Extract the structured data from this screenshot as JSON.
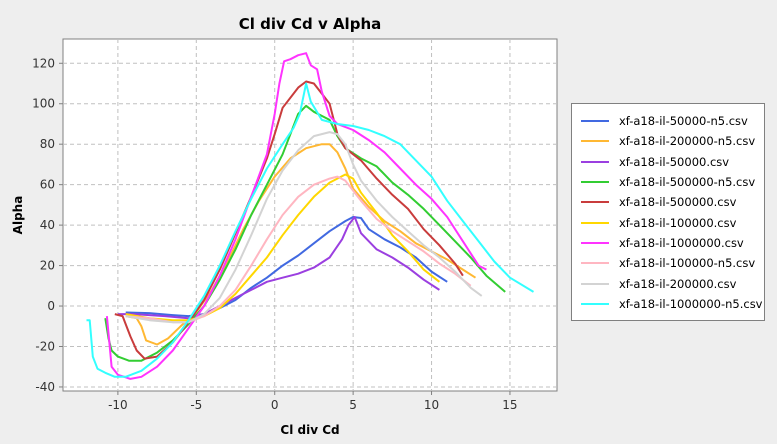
{
  "chart_data": {
    "type": "line",
    "title": "Cl div Cd v Alpha",
    "xlabel": "Cl div Cd",
    "ylabel": "Alpha",
    "xlim": [
      -13.5,
      18
    ],
    "ylim": [
      -42,
      132
    ],
    "x_ticks": [
      -10,
      -5,
      0,
      5,
      10,
      15
    ],
    "y_ticks": [
      -40,
      -20,
      0,
      20,
      40,
      60,
      80,
      100,
      120
    ],
    "grid": true,
    "legend_position": "right",
    "series": [
      {
        "name": "xf-a18-il-50000-n5.csv",
        "color": "#4169e1",
        "points": [
          [
            -9.5,
            -3.2
          ],
          [
            -8,
            -3.5
          ],
          [
            -6.5,
            -4.5
          ],
          [
            -5.5,
            -5
          ],
          [
            -4.5,
            -4
          ],
          [
            -3.5,
            -1
          ],
          [
            -2.5,
            3
          ],
          [
            -1.5,
            9
          ],
          [
            -0.5,
            14
          ],
          [
            0.5,
            20
          ],
          [
            1.5,
            25
          ],
          [
            2.5,
            31
          ],
          [
            3.5,
            37
          ],
          [
            4.5,
            42
          ],
          [
            5,
            44
          ],
          [
            5.5,
            43.5
          ],
          [
            6,
            38
          ],
          [
            7,
            33
          ],
          [
            8,
            29
          ],
          [
            9,
            24
          ],
          [
            10,
            17
          ],
          [
            11,
            12
          ]
        ]
      },
      {
        "name": "xf-a18-il-200000-n5.csv",
        "color": "#ffb833",
        "points": [
          [
            -9.5,
            -5
          ],
          [
            -8.8,
            -6
          ],
          [
            -8.5,
            -10
          ],
          [
            -8.2,
            -17
          ],
          [
            -7.5,
            -19
          ],
          [
            -6.8,
            -16
          ],
          [
            -6,
            -10
          ],
          [
            -5,
            -3
          ],
          [
            -4,
            8
          ],
          [
            -3,
            22
          ],
          [
            -2,
            38
          ],
          [
            -1,
            52
          ],
          [
            0,
            64
          ],
          [
            1,
            73
          ],
          [
            2,
            78
          ],
          [
            3,
            80
          ],
          [
            3.5,
            80
          ],
          [
            4,
            76
          ],
          [
            4.5,
            68
          ],
          [
            5,
            58
          ],
          [
            6,
            49
          ],
          [
            7,
            42
          ],
          [
            8,
            37
          ],
          [
            9,
            31
          ],
          [
            10,
            27
          ],
          [
            11,
            23
          ],
          [
            12,
            18
          ],
          [
            12.8,
            14
          ]
        ]
      },
      {
        "name": "xf-a18-il-50000.csv",
        "color": "#9b3fe0",
        "points": [
          [
            -10,
            -4
          ],
          [
            -9,
            -4
          ],
          [
            -7,
            -5
          ],
          [
            -5.5,
            -6
          ],
          [
            -4.5,
            -4
          ],
          [
            -3.5,
            0
          ],
          [
            -2.5,
            4
          ],
          [
            -1.5,
            8
          ],
          [
            -0.5,
            12
          ],
          [
            0.5,
            14
          ],
          [
            1.5,
            16
          ],
          [
            2.5,
            19
          ],
          [
            3.5,
            24
          ],
          [
            4.3,
            33
          ],
          [
            4.7,
            40
          ],
          [
            5.1,
            44
          ],
          [
            5.5,
            36
          ],
          [
            6.5,
            28
          ],
          [
            7.5,
            24
          ],
          [
            8.5,
            19
          ],
          [
            9.5,
            13
          ],
          [
            10.5,
            8
          ]
        ]
      },
      {
        "name": "xf-a18-il-500000-n5.csv",
        "color": "#32cd32",
        "points": [
          [
            -10.8,
            -6
          ],
          [
            -10.6,
            -16
          ],
          [
            -10.4,
            -22
          ],
          [
            -10,
            -25
          ],
          [
            -9.3,
            -27
          ],
          [
            -8.5,
            -27
          ],
          [
            -7.5,
            -23
          ],
          [
            -6.5,
            -17
          ],
          [
            -5.5,
            -9
          ],
          [
            -4.5,
            0
          ],
          [
            -3.5,
            13
          ],
          [
            -2.5,
            28
          ],
          [
            -1.5,
            45
          ],
          [
            -0.5,
            60
          ],
          [
            0.5,
            75
          ],
          [
            1.5,
            95
          ],
          [
            2,
            99
          ],
          [
            2.5,
            96
          ],
          [
            3,
            94
          ],
          [
            3.5,
            92
          ],
          [
            4,
            84
          ],
          [
            4.5,
            78
          ],
          [
            5.5,
            73
          ],
          [
            6.5,
            69
          ],
          [
            7.5,
            61
          ],
          [
            8.5,
            55
          ],
          [
            9.5,
            48
          ],
          [
            10.5,
            40
          ],
          [
            11.5,
            32
          ],
          [
            12.5,
            24
          ],
          [
            13.5,
            15
          ],
          [
            14.7,
            7
          ]
        ]
      },
      {
        "name": "xf-a18-il-500000.csv",
        "color": "#c93c3c",
        "points": [
          [
            -10.2,
            -4
          ],
          [
            -9.7,
            -5
          ],
          [
            -9.2,
            -15
          ],
          [
            -8.8,
            -22
          ],
          [
            -8.3,
            -26
          ],
          [
            -7.5,
            -25
          ],
          [
            -6.5,
            -18
          ],
          [
            -5.5,
            -8
          ],
          [
            -4.5,
            3
          ],
          [
            -3.5,
            18
          ],
          [
            -2.5,
            36
          ],
          [
            -1.5,
            54
          ],
          [
            -0.5,
            73
          ],
          [
            0,
            85
          ],
          [
            0.5,
            98
          ],
          [
            1.5,
            108
          ],
          [
            2,
            111
          ],
          [
            2.5,
            110
          ],
          [
            3,
            105
          ],
          [
            3.5,
            100
          ],
          [
            4,
            85
          ],
          [
            4.5,
            78
          ],
          [
            5.5,
            72
          ],
          [
            6.5,
            63
          ],
          [
            7.5,
            55
          ],
          [
            8.5,
            48
          ],
          [
            9.5,
            38
          ],
          [
            10.5,
            30
          ],
          [
            11.5,
            21
          ],
          [
            12,
            15
          ]
        ]
      },
      {
        "name": "xf-a18-il-100000.csv",
        "color": "#ffd700",
        "points": [
          [
            -9.5,
            -4
          ],
          [
            -8,
            -6
          ],
          [
            -6.5,
            -7
          ],
          [
            -5.5,
            -7
          ],
          [
            -4.5,
            -5
          ],
          [
            -3.5,
            -1
          ],
          [
            -2.5,
            6
          ],
          [
            -1.5,
            15
          ],
          [
            -0.5,
            24
          ],
          [
            0.5,
            35
          ],
          [
            1.5,
            45
          ],
          [
            2.5,
            54
          ],
          [
            3.5,
            61
          ],
          [
            4.5,
            65
          ],
          [
            5,
            63
          ],
          [
            5.5,
            56
          ],
          [
            6.5,
            46
          ],
          [
            7.5,
            35
          ],
          [
            8.5,
            27
          ],
          [
            9.5,
            18
          ],
          [
            10.5,
            12
          ]
        ]
      },
      {
        "name": "xf-a18-il-1000000.csv",
        "color": "#ff33ff",
        "points": [
          [
            -10.7,
            -5
          ],
          [
            -10.4,
            -30
          ],
          [
            -10,
            -34
          ],
          [
            -9.2,
            -36
          ],
          [
            -8.5,
            -35
          ],
          [
            -7.5,
            -30
          ],
          [
            -6.5,
            -22
          ],
          [
            -5.5,
            -11
          ],
          [
            -4.5,
            0
          ],
          [
            -3.5,
            15
          ],
          [
            -2.5,
            33
          ],
          [
            -1.5,
            54
          ],
          [
            -0.5,
            75
          ],
          [
            0,
            95
          ],
          [
            0.3,
            110
          ],
          [
            0.6,
            121
          ],
          [
            1,
            122
          ],
          [
            1.5,
            124
          ],
          [
            2,
            125
          ],
          [
            2.3,
            119
          ],
          [
            2.7,
            117
          ],
          [
            3,
            106
          ],
          [
            3.5,
            94
          ],
          [
            4,
            90
          ],
          [
            5,
            87
          ],
          [
            6,
            82
          ],
          [
            7,
            76
          ],
          [
            8,
            68
          ],
          [
            9,
            60
          ],
          [
            10,
            53
          ],
          [
            11,
            44
          ],
          [
            12,
            32
          ],
          [
            13,
            20
          ],
          [
            13.5,
            18
          ]
        ]
      },
      {
        "name": "xf-a18-il-100000-n5.csv",
        "color": "#ffb6c1",
        "points": [
          [
            -9.5,
            -5
          ],
          [
            -8,
            -6
          ],
          [
            -6.5,
            -8
          ],
          [
            -5.5,
            -8
          ],
          [
            -4.5,
            -5
          ],
          [
            -3.5,
            0
          ],
          [
            -2.5,
            8
          ],
          [
            -1.5,
            20
          ],
          [
            -0.5,
            33
          ],
          [
            0.5,
            45
          ],
          [
            1.5,
            54
          ],
          [
            2.5,
            60
          ],
          [
            3.5,
            63
          ],
          [
            4,
            64
          ],
          [
            4.5,
            62
          ],
          [
            5,
            57
          ],
          [
            5.5,
            52
          ],
          [
            6.5,
            43
          ],
          [
            7.5,
            37
          ],
          [
            8.5,
            32
          ],
          [
            9.5,
            27
          ],
          [
            10.5,
            21
          ],
          [
            11.5,
            16
          ],
          [
            12.5,
            10
          ]
        ]
      },
      {
        "name": "xf-a18-il-200000.csv",
        "color": "#d3d3d3",
        "points": [
          [
            -9.5,
            -5
          ],
          [
            -8,
            -7
          ],
          [
            -6.5,
            -8
          ],
          [
            -5.5,
            -8
          ],
          [
            -4.5,
            -4
          ],
          [
            -3.5,
            4
          ],
          [
            -2.5,
            18
          ],
          [
            -1.5,
            35
          ],
          [
            -0.5,
            53
          ],
          [
            0.5,
            67
          ],
          [
            1.5,
            77
          ],
          [
            2.5,
            84
          ],
          [
            3.5,
            86
          ],
          [
            4,
            85
          ],
          [
            4.5,
            80
          ],
          [
            5,
            70
          ],
          [
            5.5,
            62
          ],
          [
            6.5,
            52
          ],
          [
            7.5,
            44
          ],
          [
            8.5,
            37
          ],
          [
            9.5,
            30
          ],
          [
            10.5,
            24
          ],
          [
            11.5,
            17
          ],
          [
            12.5,
            9
          ],
          [
            13.2,
            5
          ]
        ]
      },
      {
        "name": "xf-a18-il-1000000-n5.csv",
        "color": "#33ffff",
        "points": [
          [
            -12,
            -7
          ],
          [
            -11.8,
            -7
          ],
          [
            -11.6,
            -25
          ],
          [
            -11.3,
            -31
          ],
          [
            -10.8,
            -33
          ],
          [
            -10.2,
            -35
          ],
          [
            -9.5,
            -35
          ],
          [
            -8.5,
            -32
          ],
          [
            -7.5,
            -26
          ],
          [
            -6.5,
            -18
          ],
          [
            -5.5,
            -7
          ],
          [
            -4.5,
            5
          ],
          [
            -3.5,
            20
          ],
          [
            -2.5,
            37
          ],
          [
            -1.5,
            53
          ],
          [
            -0.5,
            68
          ],
          [
            0.5,
            80
          ],
          [
            1.2,
            88
          ],
          [
            1.6,
            95
          ],
          [
            2,
            110
          ],
          [
            2.3,
            101
          ],
          [
            3,
            92
          ],
          [
            4,
            90
          ],
          [
            5,
            89
          ],
          [
            6,
            87
          ],
          [
            7,
            84
          ],
          [
            8,
            80
          ],
          [
            9,
            72
          ],
          [
            10,
            64
          ],
          [
            11,
            52
          ],
          [
            12,
            42
          ],
          [
            13,
            32
          ],
          [
            14,
            22
          ],
          [
            15,
            14
          ],
          [
            16.5,
            7
          ]
        ]
      }
    ]
  }
}
